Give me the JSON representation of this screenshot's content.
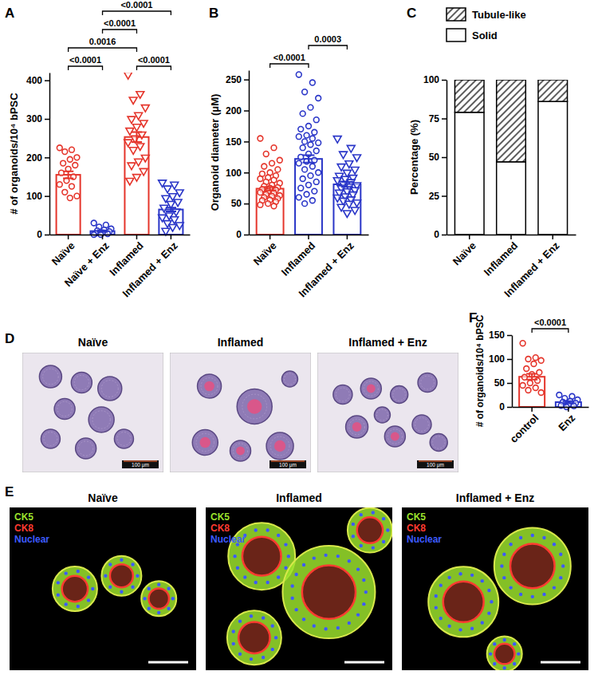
{
  "chart_data": [
    {
      "panel": "A",
      "type": "bar",
      "y_label": "# of organoids/10⁴ bPSC",
      "categories": [
        "Naïve",
        "Naïve + Enz",
        "Inflamed",
        "Inflamed + Enz"
      ],
      "values": [
        155,
        9,
        253,
        65
      ],
      "errors": [
        9,
        2,
        13,
        5
      ],
      "colors": [
        "#e5352b",
        "#2a36c8",
        "#e5352b",
        "#2a36c8"
      ],
      "points": [
        {
          "marker": "circle",
          "values": [
            225,
            220,
            215,
            200,
            195,
            185,
            180,
            170,
            160,
            150,
            140,
            130,
            125,
            110,
            100,
            95
          ]
        },
        {
          "marker": "circle",
          "values": [
            30,
            25,
            20,
            15,
            12,
            10,
            8,
            5,
            3,
            2,
            0,
            0
          ]
        },
        {
          "marker": "triangle-down",
          "values": [
            415,
            365,
            350,
            330,
            310,
            300,
            290,
            280,
            270,
            260,
            250,
            240,
            230,
            220,
            200,
            190,
            180,
            165,
            150,
            140
          ]
        },
        {
          "marker": "triangle-down",
          "values": [
            135,
            130,
            120,
            110,
            100,
            95,
            85,
            80,
            70,
            60,
            50,
            45,
            40,
            30,
            25,
            20,
            10
          ]
        }
      ],
      "ylim": [
        0,
        420
      ],
      "yticks": [
        0,
        100,
        200,
        300,
        400
      ],
      "brackets": [
        {
          "pair": [
            0,
            1
          ],
          "label": "<0.0001"
        },
        {
          "pair": [
            0,
            2
          ],
          "label": "0.0016"
        },
        {
          "pair": [
            2,
            3
          ],
          "label": "<0.0001"
        },
        {
          "pair": [
            1,
            2
          ],
          "label": "<0.0001"
        },
        {
          "pair": [
            1,
            3
          ],
          "label": "<0.0001"
        }
      ]
    },
    {
      "panel": "B",
      "type": "bar",
      "y_label": "Organoid diameter (μM)",
      "categories": [
        "Naïve",
        "Inflamed",
        "Inflamed + Enz"
      ],
      "values": [
        74,
        122,
        81
      ],
      "errors": [
        3,
        6,
        4
      ],
      "colors": [
        "#e5352b",
        "#2a36c8",
        "#2a36c8"
      ],
      "points": [
        {
          "marker": "circle",
          "values": [
            155,
            140,
            130,
            120,
            115,
            110,
            105,
            100,
            98,
            95,
            92,
            90,
            88,
            85,
            83,
            80,
            78,
            76,
            75,
            73,
            72,
            70,
            68,
            67,
            65,
            63,
            62,
            60,
            58,
            56,
            55,
            53,
            50,
            48,
            46
          ]
        },
        {
          "marker": "circle",
          "values": [
            258,
            245,
            230,
            220,
            205,
            195,
            185,
            175,
            170,
            165,
            160,
            158,
            155,
            150,
            148,
            145,
            140,
            135,
            130,
            125,
            120,
            118,
            115,
            110,
            105,
            100,
            95,
            90,
            85,
            80,
            75,
            70,
            65,
            60,
            55,
            50
          ]
        },
        {
          "marker": "triangle-down",
          "values": [
            155,
            140,
            130,
            125,
            115,
            110,
            105,
            100,
            95,
            92,
            90,
            88,
            85,
            82,
            80,
            78,
            75,
            72,
            70,
            68,
            65,
            62,
            60,
            57,
            55,
            52,
            50,
            45,
            40,
            35
          ]
        }
      ],
      "ylim": [
        0,
        265
      ],
      "yticks": [
        0,
        50,
        100,
        150,
        200,
        250
      ],
      "brackets": [
        {
          "pair": [
            0,
            1
          ],
          "label": "<0.0001"
        },
        {
          "pair": [
            1,
            2
          ],
          "label": "0.0003"
        }
      ]
    },
    {
      "panel": "C",
      "type": "bar",
      "stacked": true,
      "y_label": "Percentage (%)",
      "categories": [
        "Naïve",
        "Inflamed",
        "Inflamed + Enz"
      ],
      "series": [
        {
          "name": "Solid",
          "color": "#ffffff",
          "values": [
            79,
            47,
            86
          ]
        },
        {
          "name": "Tubule-like",
          "color": "#333333",
          "values": [
            21,
            53,
            14
          ]
        }
      ],
      "legend": "top-left",
      "ylim": [
        0,
        100
      ],
      "yticks": [
        0,
        25,
        50,
        75,
        100
      ]
    },
    {
      "panel": "F",
      "type": "bar",
      "y_label": "# of organoids/10⁴ bPSC",
      "categories": [
        "control",
        "Enz"
      ],
      "values": [
        63,
        10
      ],
      "errors": [
        6,
        2
      ],
      "colors": [
        "#e5352b",
        "#2a36c8"
      ],
      "points": [
        {
          "marker": "circle",
          "values": [
            133,
            103,
            100,
            97,
            90,
            80,
            72,
            68,
            62,
            55,
            50,
            45,
            40,
            35,
            30
          ]
        },
        {
          "marker": "circle",
          "values": [
            25,
            22,
            18,
            15,
            12,
            10,
            8,
            5,
            3,
            2,
            0
          ]
        }
      ],
      "ylim": [
        0,
        150
      ],
      "yticks": [
        0,
        50,
        100,
        150
      ],
      "brackets": [
        {
          "pair": [
            0,
            1
          ],
          "label": "<0.0001"
        }
      ]
    }
  ],
  "image_panels": [
    {
      "panel": "D",
      "titles": [
        "Naïve",
        "Inflamed",
        "Inflamed + Enz"
      ],
      "scale_bar": "100 μm"
    },
    {
      "panel": "E",
      "titles": [
        "Naïve",
        "Inflamed",
        "Inflamed + Enz"
      ],
      "channels": [
        {
          "name": "CK5",
          "color": "#9be22d"
        },
        {
          "name": "CK8",
          "color": "#ff3b30"
        },
        {
          "name": "Nuclear",
          "color": "#3d5bff"
        }
      ]
    }
  ]
}
